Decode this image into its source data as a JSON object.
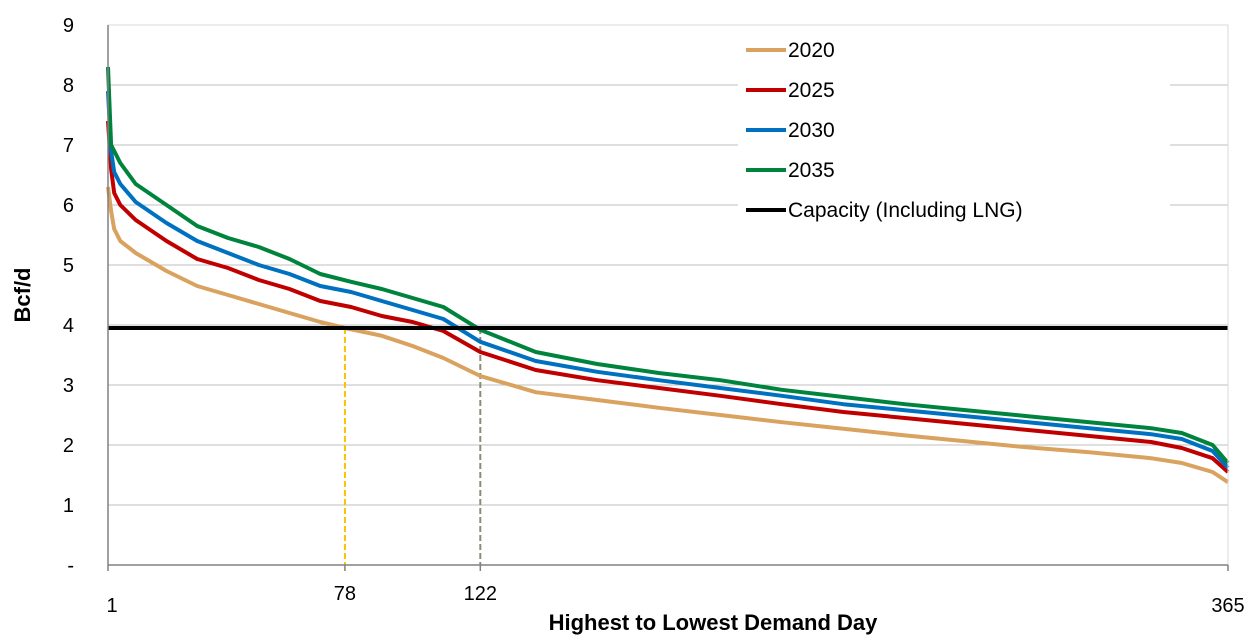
{
  "chart_data": {
    "type": "line",
    "title": "",
    "xlabel": "Highest to Lowest Demand Day",
    "ylabel": "Bcf/d",
    "xlim": [
      1,
      365
    ],
    "ylim": [
      0,
      9
    ],
    "x_ticks": [
      {
        "value": 1,
        "label": "1"
      },
      {
        "value": 78,
        "label": "78"
      },
      {
        "value": 122,
        "label": "122"
      },
      {
        "value": 365,
        "label": "365"
      }
    ],
    "y_ticks": [
      {
        "value": 0,
        "label": "-"
      },
      {
        "value": 1,
        "label": "1"
      },
      {
        "value": 2,
        "label": "2"
      },
      {
        "value": 3,
        "label": "3"
      },
      {
        "value": 4,
        "label": "4"
      },
      {
        "value": 5,
        "label": "5"
      },
      {
        "value": 6,
        "label": "6"
      },
      {
        "value": 7,
        "label": "7"
      },
      {
        "value": 8,
        "label": "8"
      },
      {
        "value": 9,
        "label": "9"
      }
    ],
    "grid": "horizontal",
    "legend_position": "top-right",
    "series": [
      {
        "name": "2020",
        "color": "#D9A25F",
        "x": [
          1,
          2,
          3,
          5,
          10,
          20,
          30,
          40,
          50,
          60,
          70,
          78,
          90,
          100,
          110,
          122,
          140,
          160,
          180,
          200,
          220,
          240,
          260,
          280,
          300,
          320,
          340,
          350,
          360,
          365
        ],
        "y": [
          6.3,
          5.9,
          5.6,
          5.4,
          5.2,
          4.9,
          4.65,
          4.5,
          4.35,
          4.2,
          4.05,
          3.95,
          3.82,
          3.65,
          3.45,
          3.15,
          2.88,
          2.75,
          2.62,
          2.5,
          2.38,
          2.27,
          2.16,
          2.06,
          1.96,
          1.88,
          1.78,
          1.7,
          1.55,
          1.38
        ]
      },
      {
        "name": "2025",
        "color": "#C00000",
        "x": [
          1,
          2,
          3,
          5,
          10,
          20,
          30,
          40,
          50,
          60,
          70,
          80,
          90,
          100,
          110,
          122,
          140,
          160,
          180,
          200,
          220,
          240,
          260,
          280,
          300,
          320,
          340,
          350,
          360,
          365
        ],
        "y": [
          7.4,
          6.6,
          6.2,
          6.0,
          5.75,
          5.4,
          5.1,
          4.95,
          4.75,
          4.6,
          4.4,
          4.3,
          4.15,
          4.05,
          3.9,
          3.55,
          3.25,
          3.08,
          2.95,
          2.82,
          2.68,
          2.55,
          2.45,
          2.35,
          2.25,
          2.15,
          2.05,
          1.95,
          1.78,
          1.55
        ]
      },
      {
        "name": "2030",
        "color": "#0070C0",
        "x": [
          1,
          2,
          3,
          5,
          10,
          20,
          30,
          40,
          50,
          60,
          70,
          80,
          90,
          100,
          110,
          122,
          140,
          160,
          180,
          200,
          220,
          240,
          260,
          280,
          300,
          320,
          340,
          350,
          360,
          365
        ],
        "y": [
          7.9,
          6.9,
          6.55,
          6.35,
          6.05,
          5.7,
          5.4,
          5.2,
          5.0,
          4.85,
          4.65,
          4.55,
          4.4,
          4.25,
          4.1,
          3.72,
          3.4,
          3.22,
          3.08,
          2.95,
          2.82,
          2.68,
          2.58,
          2.48,
          2.38,
          2.28,
          2.18,
          2.1,
          1.9,
          1.62
        ]
      },
      {
        "name": "2035",
        "color": "#00843D",
        "x": [
          1,
          2,
          3,
          5,
          10,
          20,
          30,
          40,
          50,
          60,
          70,
          80,
          90,
          100,
          110,
          122,
          140,
          160,
          180,
          200,
          220,
          240,
          260,
          280,
          300,
          320,
          340,
          350,
          360,
          365
        ],
        "y": [
          8.3,
          7.0,
          6.9,
          6.7,
          6.35,
          6.0,
          5.65,
          5.45,
          5.3,
          5.1,
          4.85,
          4.72,
          4.6,
          4.45,
          4.3,
          3.92,
          3.55,
          3.35,
          3.2,
          3.08,
          2.92,
          2.8,
          2.68,
          2.58,
          2.48,
          2.38,
          2.28,
          2.2,
          2.0,
          1.7
        ]
      },
      {
        "name": "Capacity (Including LNG)",
        "color": "#000000",
        "x": [
          1,
          365
        ],
        "y": [
          3.95,
          3.95
        ]
      }
    ],
    "markers": [
      {
        "x": 78,
        "y": 3.95,
        "color": "#FFC000",
        "style": "dashed"
      },
      {
        "x": 122,
        "y": 3.95,
        "color": "#8C8C74",
        "style": "dashed"
      }
    ]
  }
}
